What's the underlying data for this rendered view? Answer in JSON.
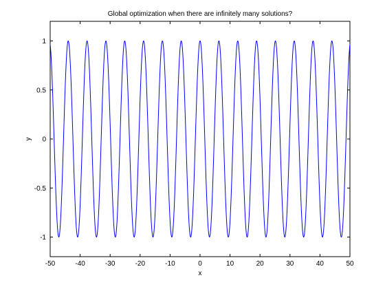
{
  "chart_data": {
    "type": "line",
    "title": "Global optimization when there are infinitely many solutions?",
    "xlabel": "x",
    "ylabel": "y",
    "xlim": [
      -50,
      50
    ],
    "ylim": [
      -1.2,
      1.2
    ],
    "xticks": [
      -50,
      -40,
      -30,
      -20,
      -10,
      0,
      10,
      20,
      30,
      40,
      50
    ],
    "yticks": [
      -1,
      -0.5,
      0,
      0.5,
      1
    ],
    "xtick_labels": [
      "-50",
      "-40",
      "-30",
      "-20",
      "-10",
      "0",
      "10",
      "20",
      "30",
      "40",
      "50"
    ],
    "ytick_labels": [
      "-1",
      "-0.5",
      "0",
      "0.5",
      "1"
    ],
    "grid": false,
    "series": [
      {
        "color": "#0000ff",
        "function": "y = cos(x)",
        "x_range": [
          -50,
          50
        ]
      }
    ]
  }
}
